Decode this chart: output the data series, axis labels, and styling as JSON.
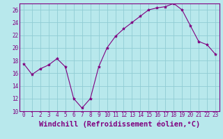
{
  "x": [
    0,
    1,
    2,
    3,
    4,
    5,
    6,
    7,
    8,
    9,
    10,
    11,
    12,
    13,
    14,
    15,
    16,
    17,
    18,
    19,
    20,
    21,
    22,
    23
  ],
  "y": [
    17.5,
    15.8,
    16.7,
    17.3,
    18.3,
    17.0,
    12.0,
    10.5,
    12.0,
    17.0,
    20.0,
    21.8,
    23.0,
    24.0,
    25.0,
    26.0,
    26.3,
    26.5,
    27.0,
    26.0,
    23.5,
    21.0,
    20.5,
    19.0
  ],
  "line_color": "#800080",
  "marker": "*",
  "marker_color": "#800080",
  "bg_color": "#b8e8ec",
  "grid_color": "#90ccd4",
  "xlabel": "Windchill (Refroidissement éolien,°C)",
  "xlabel_color": "#800080",
  "ylim": [
    10,
    27
  ],
  "xlim": [
    -0.5,
    23.5
  ],
  "yticks": [
    10,
    12,
    14,
    16,
    18,
    20,
    22,
    24,
    26
  ],
  "xticks": [
    0,
    1,
    2,
    3,
    4,
    5,
    6,
    7,
    8,
    9,
    10,
    11,
    12,
    13,
    14,
    15,
    16,
    17,
    18,
    19,
    20,
    21,
    22,
    23
  ],
  "tick_color": "#800080",
  "tick_labelsize": 5.5,
  "xlabel_fontsize": 7.5,
  "xlabel_fontweight": "bold",
  "spine_color": "#800080"
}
